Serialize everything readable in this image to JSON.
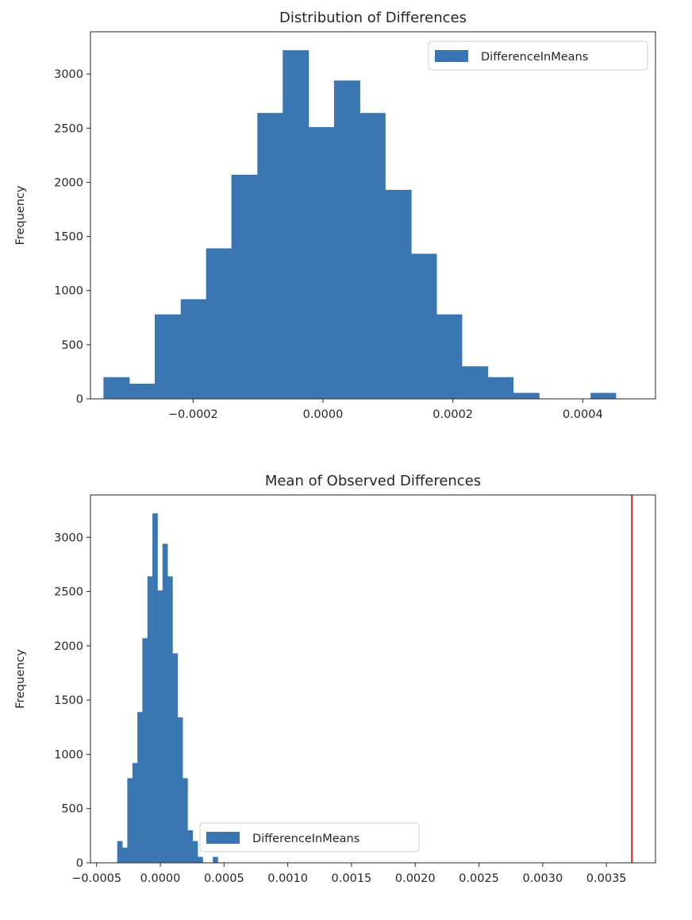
{
  "chart_data": [
    {
      "type": "bar",
      "title": "Distribution of Differences",
      "xlabel": "",
      "ylabel": "Frequency",
      "xlim": [
        -0.000358,
        0.000512
      ],
      "ylim": [
        0,
        3390
      ],
      "x_ticks": [
        -0.0002,
        0.0,
        0.0002,
        0.0004
      ],
      "x_tick_labels": [
        "−0.0002",
        "0.0000",
        "0.0002",
        "0.0004"
      ],
      "y_ticks": [
        0,
        500,
        1000,
        1500,
        2000,
        2500,
        3000
      ],
      "y_tick_labels": [
        "0",
        "500",
        "1000",
        "1500",
        "2000",
        "2500",
        "3000"
      ],
      "legend": {
        "position": "top-right",
        "entries": [
          "DifferenceInMeans"
        ]
      },
      "grid": false,
      "series": [
        {
          "name": "DifferenceInMeans",
          "color": "#3a76b1",
          "bin_edges": [
            -0.000338,
            -0.000298,
            -0.000259,
            -0.000219,
            -0.00018,
            -0.000141,
            -0.000101,
            -6.2e-05,
            -2.2e-05,
            1.7e-05,
            5.7e-05,
            9.6e-05,
            0.000136,
            0.000175,
            0.000214,
            0.000254,
            0.000293,
            0.000333,
            0.000372,
            0.000412,
            0.000451,
            0.000491
          ],
          "values": [
            200,
            140,
            780,
            920,
            1390,
            2070,
            2640,
            3220,
            2510,
            2940,
            2640,
            1930,
            1340,
            780,
            300,
            200,
            55,
            0,
            0,
            55,
            0
          ]
        }
      ]
    },
    {
      "type": "bar",
      "title": "Mean of Observed Differences",
      "xlabel": "",
      "ylabel": "Frequency",
      "xlim": [
        -0.000548,
        0.003885
      ],
      "ylim": [
        0,
        3390
      ],
      "x_ticks": [
        -0.0005,
        0.0,
        0.0005,
        0.001,
        0.0015,
        0.002,
        0.0025,
        0.003,
        0.0035
      ],
      "x_tick_labels": [
        "−0.0005",
        "0.0000",
        "0.0005",
        "0.0010",
        "0.0015",
        "0.0020",
        "0.0025",
        "0.0030",
        "0.0035"
      ],
      "y_ticks": [
        0,
        500,
        1000,
        1500,
        2000,
        2500,
        3000
      ],
      "y_tick_labels": [
        "0",
        "500",
        "1000",
        "1500",
        "2000",
        "2500",
        "3000"
      ],
      "legend": {
        "position": "bottom-center",
        "entries": [
          "DifferenceInMeans"
        ]
      },
      "grid": false,
      "vline": {
        "x": 0.0037,
        "color": "#e0413a"
      },
      "series": [
        {
          "name": "DifferenceInMeans",
          "color": "#3a76b1",
          "bin_edges": [
            -0.000338,
            -0.000298,
            -0.000259,
            -0.000219,
            -0.00018,
            -0.000141,
            -0.000101,
            -6.2e-05,
            -2.2e-05,
            1.7e-05,
            5.7e-05,
            9.6e-05,
            0.000136,
            0.000175,
            0.000214,
            0.000254,
            0.000293,
            0.000333,
            0.000372,
            0.000412,
            0.000451,
            0.000491
          ],
          "values": [
            200,
            140,
            780,
            920,
            1390,
            2070,
            2640,
            3220,
            2510,
            2940,
            2640,
            1930,
            1340,
            780,
            300,
            200,
            55,
            0,
            0,
            55,
            0
          ]
        }
      ]
    }
  ]
}
